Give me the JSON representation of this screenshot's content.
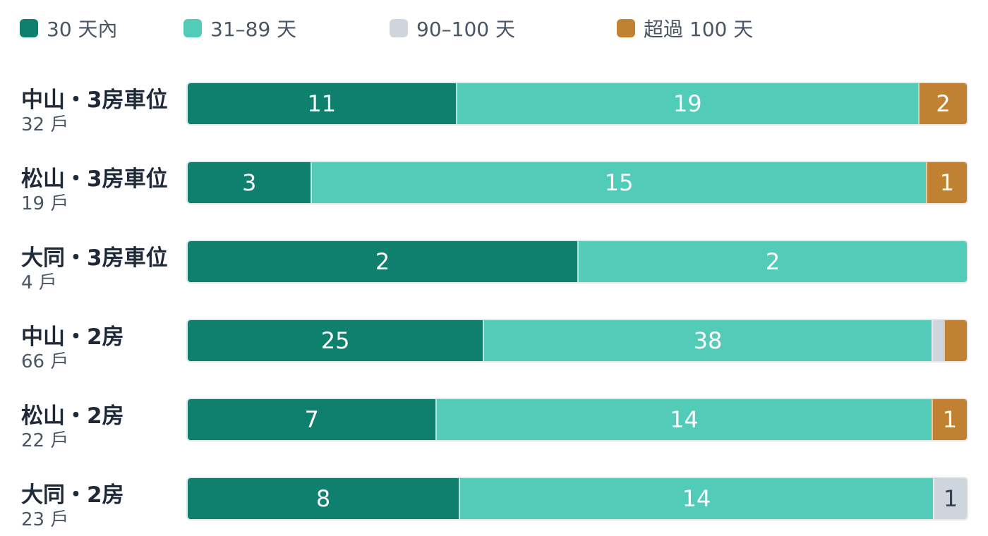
{
  "chart_data": {
    "type": "bar",
    "orientation": "horizontal",
    "stacked": true,
    "normalized": true,
    "legend_position": "top",
    "grid": false,
    "series": [
      {
        "name": "30 天內",
        "color": "#0f7f6e"
      },
      {
        "name": "31–89 天",
        "color": "#52cbb8"
      },
      {
        "name": "90–100 天",
        "color": "#cfd5dc"
      },
      {
        "name": "超過 100 天",
        "color": "#c08232"
      }
    ],
    "rows": [
      {
        "label": "中山・3房車位",
        "sublabel": "32 戶",
        "values": [
          11,
          19,
          0,
          2
        ],
        "value_labels": [
          "11",
          "19",
          "",
          "2"
        ]
      },
      {
        "label": "松山・3房車位",
        "sublabel": "19 戶",
        "values": [
          3,
          15,
          0,
          1
        ],
        "value_labels": [
          "3",
          "15",
          "",
          "1"
        ]
      },
      {
        "label": "大同・3房車位",
        "sublabel": "4 戶",
        "values": [
          2,
          2,
          0,
          0
        ],
        "value_labels": [
          "2",
          "2",
          "",
          ""
        ]
      },
      {
        "label": "中山・2房",
        "sublabel": "66 戶",
        "values": [
          25,
          38,
          1,
          2
        ],
        "value_labels": [
          "25",
          "38",
          "",
          ""
        ]
      },
      {
        "label": "松山・2房",
        "sublabel": "22 戶",
        "values": [
          7,
          14,
          0,
          1
        ],
        "value_labels": [
          "7",
          "14",
          "",
          "1"
        ]
      },
      {
        "label": "大同・2房",
        "sublabel": "23 戶",
        "values": [
          8,
          14,
          1,
          0
        ],
        "value_labels": [
          "8",
          "14",
          "1",
          ""
        ]
      }
    ]
  }
}
